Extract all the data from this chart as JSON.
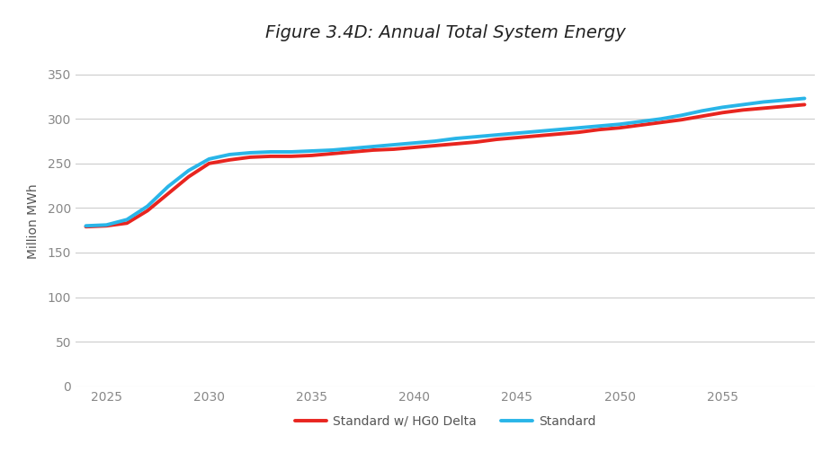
{
  "title": "Figure 3.4D: Annual Total System Energy",
  "ylabel": "Million MWh",
  "xlabel": "",
  "xlim": [
    2023.5,
    2059.5
  ],
  "ylim": [
    0,
    370
  ],
  "yticks": [
    0,
    50,
    100,
    150,
    200,
    250,
    300,
    350
  ],
  "xticks": [
    2025,
    2030,
    2035,
    2040,
    2045,
    2050,
    2055
  ],
  "grid_color": "#cccccc",
  "background_color": "#ffffff",
  "standard_color": "#29b5e8",
  "hg0_color": "#e8251f",
  "standard_x": [
    2024,
    2025,
    2026,
    2027,
    2028,
    2029,
    2030,
    2031,
    2032,
    2033,
    2034,
    2035,
    2036,
    2037,
    2038,
    2039,
    2040,
    2041,
    2042,
    2043,
    2044,
    2045,
    2046,
    2047,
    2048,
    2049,
    2050,
    2051,
    2052,
    2053,
    2054,
    2055,
    2056,
    2057,
    2058,
    2059
  ],
  "standard_y": [
    180,
    181,
    187,
    202,
    224,
    242,
    255,
    260,
    262,
    263,
    263,
    264,
    265,
    267,
    269,
    271,
    273,
    275,
    278,
    280,
    282,
    284,
    286,
    288,
    290,
    292,
    294,
    297,
    300,
    304,
    309,
    313,
    316,
    319,
    321,
    323
  ],
  "hg0_x": [
    2024,
    2025,
    2026,
    2027,
    2028,
    2029,
    2030,
    2031,
    2032,
    2033,
    2034,
    2035,
    2036,
    2037,
    2038,
    2039,
    2040,
    2041,
    2042,
    2043,
    2044,
    2045,
    2046,
    2047,
    2048,
    2049,
    2050,
    2051,
    2052,
    2053,
    2054,
    2055,
    2056,
    2057,
    2058,
    2059
  ],
  "hg0_y": [
    179,
    180,
    183,
    197,
    216,
    235,
    250,
    254,
    257,
    258,
    258,
    259,
    261,
    263,
    265,
    266,
    268,
    270,
    272,
    274,
    277,
    279,
    281,
    283,
    285,
    288,
    290,
    293,
    296,
    299,
    303,
    307,
    310,
    312,
    314,
    316
  ],
  "legend_labels": [
    "Standard",
    "Standard w/ HG0 Delta"
  ],
  "title_fontsize": 14,
  "axis_fontsize": 10,
  "tick_fontsize": 10,
  "legend_fontsize": 10,
  "line_width": 2.8
}
